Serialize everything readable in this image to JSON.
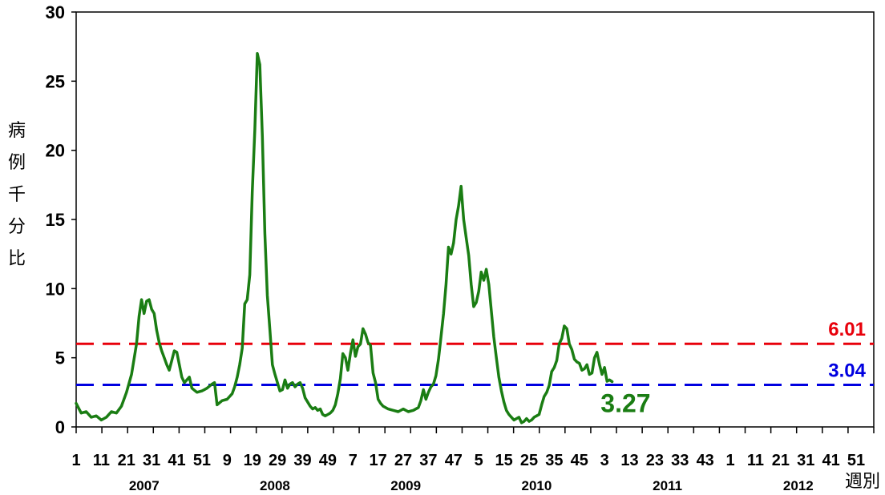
{
  "chart_data": {
    "type": "line",
    "ylabel": "病例千分比",
    "xlabel": "週別",
    "ylim": [
      0,
      30
    ],
    "yticks": [
      0,
      5,
      10,
      15,
      20,
      25,
      30
    ],
    "week_ticks": [
      "1",
      "11",
      "21",
      "31",
      "41",
      "51",
      "9",
      "19",
      "29",
      "39",
      "49",
      "7",
      "17",
      "27",
      "37",
      "47",
      "5",
      "15",
      "25",
      "35",
      "45",
      "3",
      "13",
      "23",
      "33",
      "43",
      "1",
      "11",
      "21",
      "31",
      "41",
      "51"
    ],
    "years": [
      "2007",
      "2008",
      "2009",
      "2010",
      "2011",
      "2012"
    ],
    "grid": false,
    "thresholds": [
      {
        "label": "6.01",
        "value": 6.01,
        "color": "#e8000b"
      },
      {
        "label": "3.04",
        "value": 3.04,
        "color": "#0000e0"
      }
    ],
    "current_label": "3.27",
    "series": [
      {
        "color": "#1a7d13",
        "points": [
          [
            0,
            1.7
          ],
          [
            2,
            1.0
          ],
          [
            4,
            1.1
          ],
          [
            6,
            0.7
          ],
          [
            8,
            0.8
          ],
          [
            10,
            0.5
          ],
          [
            12,
            0.7
          ],
          [
            14,
            1.1
          ],
          [
            16,
            1.0
          ],
          [
            18,
            1.5
          ],
          [
            20,
            2.5
          ],
          [
            22,
            3.8
          ],
          [
            24,
            6.0
          ],
          [
            25,
            8.0
          ],
          [
            26,
            9.2
          ],
          [
            27,
            8.2
          ],
          [
            28,
            9.1
          ],
          [
            29,
            9.2
          ],
          [
            30,
            8.5
          ],
          [
            31,
            8.2
          ],
          [
            32,
            7.0
          ],
          [
            33,
            6.1
          ],
          [
            34,
            5.5
          ],
          [
            35,
            5.0
          ],
          [
            36,
            4.5
          ],
          [
            37,
            4.1
          ],
          [
            38,
            4.8
          ],
          [
            39,
            5.5
          ],
          [
            40,
            5.4
          ],
          [
            41,
            4.5
          ],
          [
            42,
            3.6
          ],
          [
            43,
            3.2
          ],
          [
            44,
            3.4
          ],
          [
            45,
            3.6
          ],
          [
            46,
            2.8
          ],
          [
            48,
            2.5
          ],
          [
            50,
            2.6
          ],
          [
            52,
            2.8
          ],
          [
            54,
            3.1
          ],
          [
            55,
            3.2
          ],
          [
            56,
            1.6
          ],
          [
            58,
            1.9
          ],
          [
            60,
            2.0
          ],
          [
            62,
            2.4
          ],
          [
            63,
            2.9
          ],
          [
            64,
            3.6
          ],
          [
            65,
            4.5
          ],
          [
            66,
            5.7
          ],
          [
            67,
            8.9
          ],
          [
            68,
            9.2
          ],
          [
            69,
            11.0
          ],
          [
            70,
            17.0
          ],
          [
            71,
            21.5
          ],
          [
            72,
            27.0
          ],
          [
            73,
            26.2
          ],
          [
            74,
            21.0
          ],
          [
            75,
            14.0
          ],
          [
            76,
            9.5
          ],
          [
            77,
            7.0
          ],
          [
            78,
            4.5
          ],
          [
            79,
            3.8
          ],
          [
            80,
            3.2
          ],
          [
            81,
            2.6
          ],
          [
            82,
            2.7
          ],
          [
            83,
            3.4
          ],
          [
            84,
            2.8
          ],
          [
            85,
            3.1
          ],
          [
            86,
            3.2
          ],
          [
            87,
            2.9
          ],
          [
            88,
            3.1
          ],
          [
            89,
            3.2
          ],
          [
            90,
            2.8
          ],
          [
            91,
            2.1
          ],
          [
            92,
            1.8
          ],
          [
            93,
            1.5
          ],
          [
            94,
            1.3
          ],
          [
            95,
            1.4
          ],
          [
            96,
            1.2
          ],
          [
            97,
            1.3
          ],
          [
            98,
            0.9
          ],
          [
            99,
            0.8
          ],
          [
            100,
            0.9
          ],
          [
            101,
            1.0
          ],
          [
            102,
            1.2
          ],
          [
            103,
            1.6
          ],
          [
            104,
            2.4
          ],
          [
            105,
            3.5
          ],
          [
            106,
            5.3
          ],
          [
            107,
            5.0
          ],
          [
            108,
            4.1
          ],
          [
            109,
            5.3
          ],
          [
            110,
            6.3
          ],
          [
            111,
            5.1
          ],
          [
            112,
            5.8
          ],
          [
            113,
            6.0
          ],
          [
            114,
            7.1
          ],
          [
            115,
            6.7
          ],
          [
            116,
            6.1
          ],
          [
            117,
            5.9
          ],
          [
            118,
            3.9
          ],
          [
            119,
            3.2
          ],
          [
            120,
            2.0
          ],
          [
            121,
            1.7
          ],
          [
            122,
            1.5
          ],
          [
            124,
            1.3
          ],
          [
            126,
            1.2
          ],
          [
            128,
            1.1
          ],
          [
            130,
            1.3
          ],
          [
            132,
            1.1
          ],
          [
            134,
            1.2
          ],
          [
            136,
            1.4
          ],
          [
            137,
            1.9
          ],
          [
            138,
            2.7
          ],
          [
            139,
            2.0
          ],
          [
            140,
            2.5
          ],
          [
            141,
            2.9
          ],
          [
            142,
            3.1
          ],
          [
            143,
            3.7
          ],
          [
            144,
            4.9
          ],
          [
            145,
            6.5
          ],
          [
            146,
            8.2
          ],
          [
            147,
            10.3
          ],
          [
            148,
            13.0
          ],
          [
            149,
            12.5
          ],
          [
            150,
            13.3
          ],
          [
            151,
            15.0
          ],
          [
            152,
            16.0
          ],
          [
            153,
            17.4
          ],
          [
            154,
            15.0
          ],
          [
            155,
            13.7
          ],
          [
            156,
            12.4
          ],
          [
            157,
            10.3
          ],
          [
            158,
            8.7
          ],
          [
            159,
            9.0
          ],
          [
            160,
            9.8
          ],
          [
            161,
            11.2
          ],
          [
            162,
            10.6
          ],
          [
            163,
            11.4
          ],
          [
            164,
            10.3
          ],
          [
            165,
            8.4
          ],
          [
            166,
            6.5
          ],
          [
            167,
            5.0
          ],
          [
            168,
            3.6
          ],
          [
            169,
            2.6
          ],
          [
            170,
            1.8
          ],
          [
            171,
            1.2
          ],
          [
            172,
            0.9
          ],
          [
            173,
            0.7
          ],
          [
            174,
            0.5
          ],
          [
            175,
            0.6
          ],
          [
            176,
            0.7
          ],
          [
            177,
            0.3
          ],
          [
            178,
            0.4
          ],
          [
            179,
            0.6
          ],
          [
            180,
            0.4
          ],
          [
            181,
            0.5
          ],
          [
            182,
            0.7
          ],
          [
            183,
            0.8
          ],
          [
            184,
            0.9
          ],
          [
            185,
            1.6
          ],
          [
            186,
            2.2
          ],
          [
            187,
            2.5
          ],
          [
            188,
            3.0
          ],
          [
            189,
            4.0
          ],
          [
            190,
            4.3
          ],
          [
            191,
            4.8
          ],
          [
            192,
            6.0
          ],
          [
            193,
            6.4
          ],
          [
            194,
            7.3
          ],
          [
            195,
            7.1
          ],
          [
            196,
            6.0
          ],
          [
            197,
            5.6
          ],
          [
            198,
            4.9
          ],
          [
            199,
            4.7
          ],
          [
            200,
            4.6
          ],
          [
            201,
            4.1
          ],
          [
            202,
            4.2
          ],
          [
            203,
            4.5
          ],
          [
            204,
            3.8
          ],
          [
            205,
            3.9
          ],
          [
            206,
            5.0
          ],
          [
            207,
            5.4
          ],
          [
            208,
            4.5
          ],
          [
            209,
            3.8
          ],
          [
            210,
            4.3
          ],
          [
            211,
            3.3
          ],
          [
            212,
            3.4
          ],
          [
            213,
            3.27
          ]
        ]
      }
    ]
  }
}
